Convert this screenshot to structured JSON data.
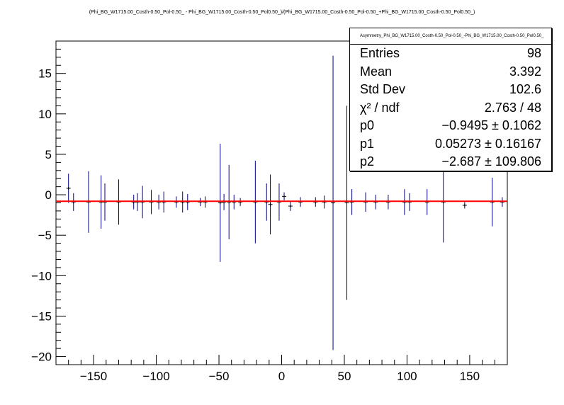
{
  "chart_data": {
    "type": "scatter",
    "title": "(Phi_BG_W1715.00_Costh-0.50_Pol-0.50_ - Phi_BG_W1715.00_Costh-0.50_Pol0.50_)/(Phi_BG_W1715.00_Costh-0.50_Pol-0.50_+Phi_BG_W1715.00_Costh-0.50_Pol0.50_)",
    "xlabel": "",
    "ylabel": "",
    "xlim": [
      -180,
      180
    ],
    "ylim": [
      -21,
      19
    ],
    "x_ticks": [
      -150,
      -100,
      -50,
      0,
      50,
      100,
      150
    ],
    "y_ticks": [
      -20,
      -15,
      -10,
      -5,
      0,
      5,
      10,
      15
    ],
    "grid": false,
    "colors": {
      "errorbar": "#000080",
      "fit": "#ff0000",
      "marker": "#000000"
    },
    "points": [
      {
        "x": -170,
        "y": 0.8,
        "err": 1.8
      },
      {
        "x": -166,
        "y": -0.9,
        "err": 1.1
      },
      {
        "x": -154,
        "y": -0.9,
        "err": 3.8
      },
      {
        "x": -144,
        "y": -0.9,
        "err": 3.3
      },
      {
        "x": -141,
        "y": -0.9,
        "err": 2.3
      },
      {
        "x": -130,
        "y": -0.9,
        "err": 2.8
      },
      {
        "x": -118,
        "y": -0.9,
        "err": 0.9
      },
      {
        "x": -115,
        "y": -0.9,
        "err": 1.1
      },
      {
        "x": -111,
        "y": -0.9,
        "err": 2.0
      },
      {
        "x": -104,
        "y": -0.9,
        "err": 1.5
      },
      {
        "x": -98,
        "y": -0.9,
        "err": 0.9
      },
      {
        "x": -94,
        "y": -0.9,
        "err": 1.3
      },
      {
        "x": -84,
        "y": -0.9,
        "err": 0.7
      },
      {
        "x": -79,
        "y": -0.9,
        "err": 1.3
      },
      {
        "x": -75,
        "y": -0.9,
        "err": 1.0
      },
      {
        "x": -65,
        "y": -0.9,
        "err": 0.5
      },
      {
        "x": -61,
        "y": -0.9,
        "err": 0.7
      },
      {
        "x": -49,
        "y": -1.0,
        "err": 7.3
      },
      {
        "x": -46,
        "y": -0.9,
        "err": 1.0
      },
      {
        "x": -42,
        "y": -0.9,
        "err": 4.6
      },
      {
        "x": -38,
        "y": -0.9,
        "err": 0.9
      },
      {
        "x": -33,
        "y": -0.9,
        "err": 0.5
      },
      {
        "x": -21,
        "y": -0.9,
        "err": 5.1
      },
      {
        "x": -12,
        "y": -0.9,
        "err": 2.3
      },
      {
        "x": -9,
        "y": -1.2,
        "err": 3.7
      },
      {
        "x": -2,
        "y": -0.9,
        "err": 2.3
      },
      {
        "x": 2,
        "y": -0.2,
        "err": 0.5
      },
      {
        "x": 7,
        "y": -1.4,
        "err": 0.6
      },
      {
        "x": 15,
        "y": -0.9,
        "err": 0.6
      },
      {
        "x": 27,
        "y": -0.9,
        "err": 0.6
      },
      {
        "x": 34,
        "y": -0.9,
        "err": 0.8
      },
      {
        "x": 41,
        "y": -1.0,
        "err": 18.2
      },
      {
        "x": 52,
        "y": -1.0,
        "err": 12.0
      },
      {
        "x": 56,
        "y": -0.9,
        "err": 1.6
      },
      {
        "x": 67,
        "y": -0.9,
        "err": 1.2
      },
      {
        "x": 75,
        "y": -0.9,
        "err": 0.9
      },
      {
        "x": 85,
        "y": -0.9,
        "err": 0.9
      },
      {
        "x": 98,
        "y": -0.9,
        "err": 1.6
      },
      {
        "x": 102,
        "y": -0.9,
        "err": 1.1
      },
      {
        "x": 116,
        "y": -0.9,
        "err": 1.6
      },
      {
        "x": 129,
        "y": -0.9,
        "err": 5.0
      },
      {
        "x": 146,
        "y": -1.3,
        "err": 0.4
      },
      {
        "x": 168,
        "y": -0.9,
        "err": 3.0
      },
      {
        "x": 176,
        "y": -0.9,
        "err": 0.6
      }
    ],
    "fit": {
      "color": "#ff0000",
      "y_at_xmin": -0.8,
      "y_at_xmax": -0.8
    }
  },
  "statbox": {
    "name": "Asymmetry_Phi_BG_W1715.00_Costh-0.50_Pol-0.50_-Phi_BG_W1715.00_Costh-0.50_Pol0.50_",
    "rows": [
      {
        "key": "Entries",
        "value": "98"
      },
      {
        "key": "Mean",
        "value": "3.392"
      },
      {
        "key": "Std Dev",
        "value": "102.6"
      },
      {
        "key": "χ² / ndf",
        "value": "2.763 / 48"
      },
      {
        "key": "p0",
        "value": "−0.9495 ± 0.1062"
      },
      {
        "key": "p1",
        "value": "0.05273 ± 0.16167"
      },
      {
        "key": "p2",
        "value": "−2.687 ± 109.806"
      }
    ]
  }
}
